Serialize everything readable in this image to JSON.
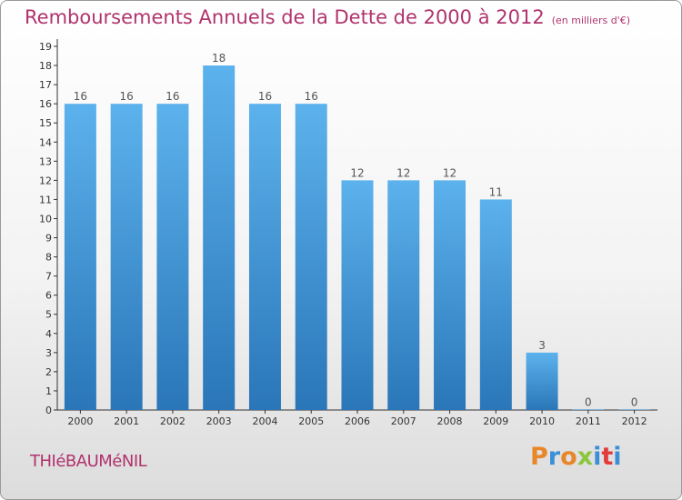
{
  "header": {
    "title": "Remboursements Annuels de la Dette de 2000 à 2012",
    "unit": "(en milliers d'€)"
  },
  "commune": "THIéBAUMéNIL",
  "brand": {
    "letters": [
      "P",
      "r",
      "o",
      "x",
      "i",
      "t",
      "i"
    ],
    "colors": [
      "#e8872a",
      "#3a8fd6",
      "#e8872a",
      "#8cc63f",
      "#3a8fd6",
      "#e23b3b",
      "#3a8fd6"
    ]
  },
  "colors": {
    "title": "#b0336d",
    "bar_top": "#5cb2ec",
    "bar_bottom": "#2a76b8",
    "axis": "#333333"
  },
  "chart_data": {
    "type": "bar",
    "title": "Remboursements Annuels de la Dette de 2000 à 2012",
    "categories": [
      "2000",
      "2001",
      "2002",
      "2003",
      "2004",
      "2005",
      "2006",
      "2007",
      "2008",
      "2009",
      "2010",
      "2011",
      "2012"
    ],
    "values": [
      16,
      16,
      16,
      18,
      16,
      16,
      12,
      12,
      12,
      11,
      3,
      0,
      0
    ],
    "yticks": [
      0,
      1,
      2,
      3,
      4,
      5,
      6,
      7,
      8,
      9,
      10,
      11,
      12,
      13,
      14,
      15,
      16,
      17,
      18,
      19
    ],
    "ylim": [
      0,
      19
    ],
    "grid": false,
    "data_labels": true
  }
}
